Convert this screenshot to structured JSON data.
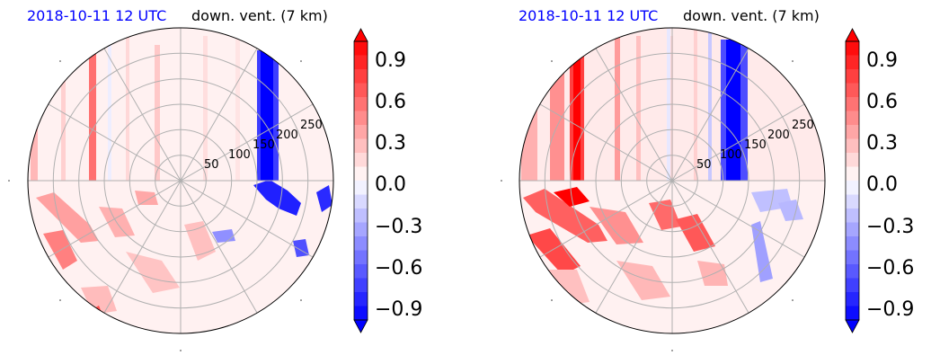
{
  "chart_data": [
    {
      "type": "heatmap",
      "projection": "polar",
      "title_date": "2018-10-11 12 UTC",
      "title_variable": "down. vent. (7 km)",
      "radial_ticks": [
        "50",
        "100",
        "150",
        "200",
        "250"
      ],
      "colorbar": {
        "ticks": [
          "0.9",
          "0.6",
          "0.3",
          "0.0",
          "−0.3",
          "−0.6",
          "−0.9"
        ],
        "range": [
          -1.0,
          1.0
        ],
        "extend": "both",
        "colormap": "bwr"
      },
      "colors": {
        "positive": "#ff0000",
        "negative": "#0000ff",
        "zero": "#ffffff"
      }
    },
    {
      "type": "heatmap",
      "projection": "polar",
      "title_date": "2018-10-11 12 UTC",
      "title_variable": "down. vent. (7 km)",
      "radial_ticks": [
        "50",
        "100",
        "150",
        "200",
        "250"
      ],
      "colorbar": {
        "ticks": [
          "0.9",
          "0.6",
          "0.3",
          "0.0",
          "−0.3",
          "−0.6",
          "−0.9"
        ],
        "range": [
          -1.0,
          1.0
        ],
        "extend": "both",
        "colormap": "bwr"
      },
      "colors": {
        "positive": "#ff0000",
        "negative": "#0000ff",
        "zero": "#ffffff"
      }
    }
  ]
}
